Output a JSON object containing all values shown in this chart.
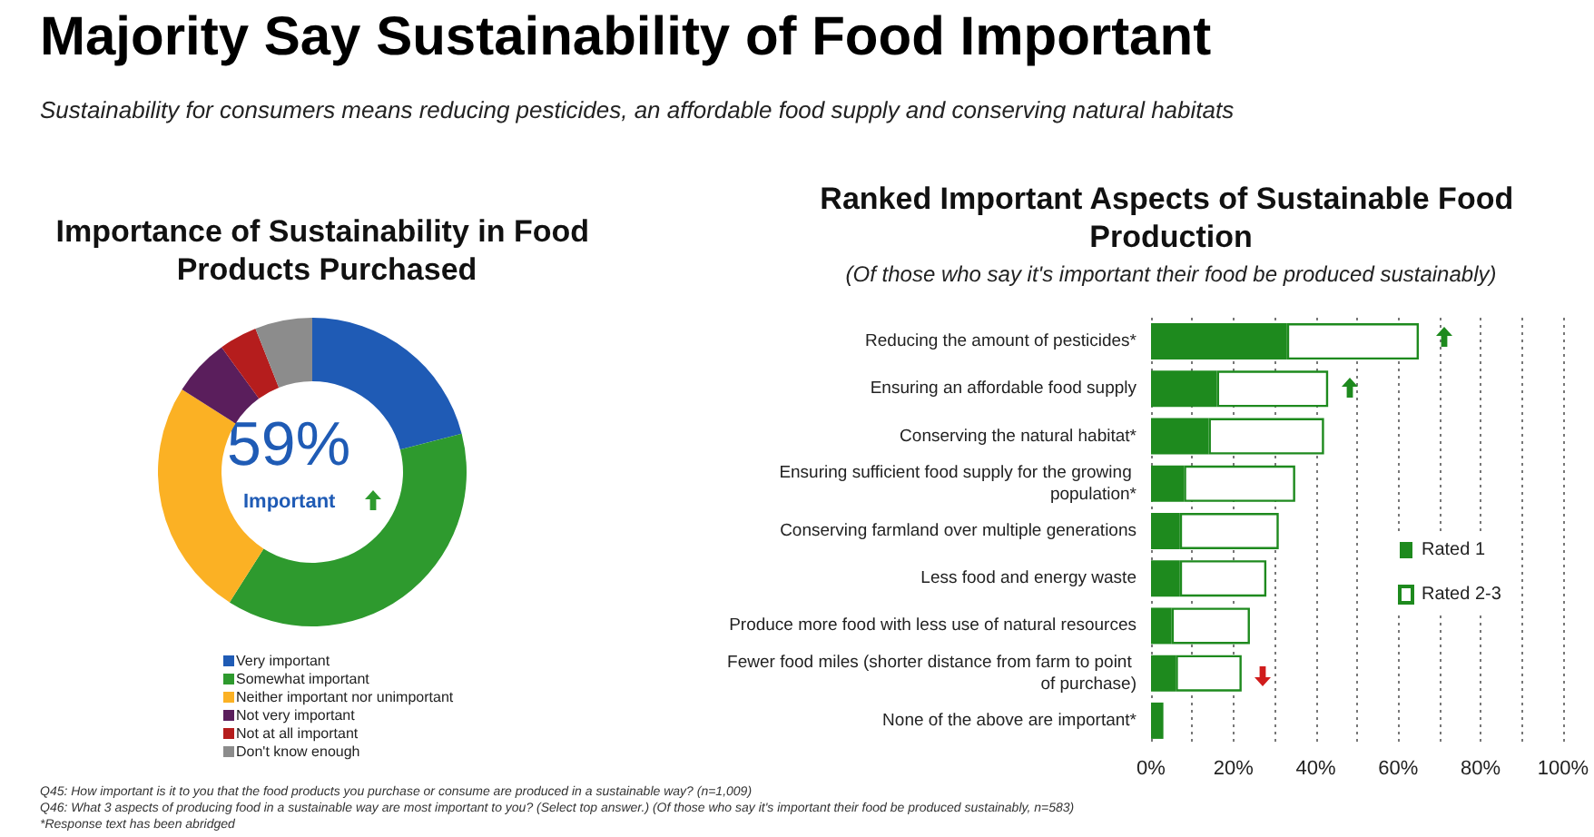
{
  "chart_data": [
    {
      "type": "donut",
      "title": "Importance of Sustainability in Food Products Purchased",
      "annotations": [
        "Majority Say Sustainability of Food Important",
        "Sustainability for consumers means reducing pesticides, an affordable food supply and conserving natural habitats",
        "59%",
        "Important",
        "Q45: How important is it to you that the food products you purchase or consume are produced in a sustainable way? (n=1,009)"
      ],
      "categories": [
        "Very important",
        "Somewhat important",
        "Neither important nor unimportant",
        "Not very important",
        "Not at all important",
        "Don't know enough"
      ],
      "values": [
        21,
        38,
        25,
        6,
        4,
        6
      ],
      "colors": [
        "#1f5bb5",
        "#2e9a2e",
        "#fbb124",
        "#5a1e5c",
        "#b51d1d",
        "#8c8c8c"
      ],
      "legend": "bottom"
    },
    {
      "type": "bar",
      "orientation": "horizontal",
      "stacked": true,
      "title": "Ranked Important Aspects of Sustainable Food Production",
      "subtitle": "(Of those who say it's important their food be produced sustainably)",
      "annotations": [
        "Q46: What 3 aspects of producing food in a sustainable way are most important to you? (Select top answer.) (Of those who say it's important their food be produced sustainably, n=583)",
        "*Response text has been abridged"
      ],
      "categories": [
        "Reducing the amount of pesticides*",
        "Ensuring an affordable food supply",
        "Conserving the natural habitat*",
        "Ensuring sufficient food supply for the growing population*",
        "Conserving farmland over multiple generations",
        "Less food and energy waste",
        "Produce more food with less use of natural resources",
        "Fewer food miles (shorter distance from farm to point of purchase)",
        "None of the above are important*"
      ],
      "series": [
        {
          "name": "Rated 1",
          "color": "#1e8a1e",
          "values": [
            33,
            16,
            14,
            8,
            7,
            7,
            5,
            6,
            3
          ]
        },
        {
          "name": "Rated 2-3",
          "color": "#ffffff",
          "values": [
            32,
            27,
            28,
            27,
            24,
            21,
            19,
            16,
            null
          ]
        }
      ],
      "xlim": [
        0,
        100
      ],
      "xticks": [
        {
          "value": 0,
          "label": "0%"
        },
        {
          "value": 10,
          "label": null
        },
        {
          "value": 20,
          "label": "20%"
        },
        {
          "value": 30,
          "label": null
        },
        {
          "value": 40,
          "label": "40%"
        },
        {
          "value": 50,
          "label": null
        },
        {
          "value": 60,
          "label": "60%"
        },
        {
          "value": 70,
          "label": null
        },
        {
          "value": 80,
          "label": "80%"
        },
        {
          "value": 90,
          "label": null
        },
        {
          "value": 100,
          "label": "100%"
        }
      ],
      "grid": "x",
      "legend": "right"
    }
  ]
}
